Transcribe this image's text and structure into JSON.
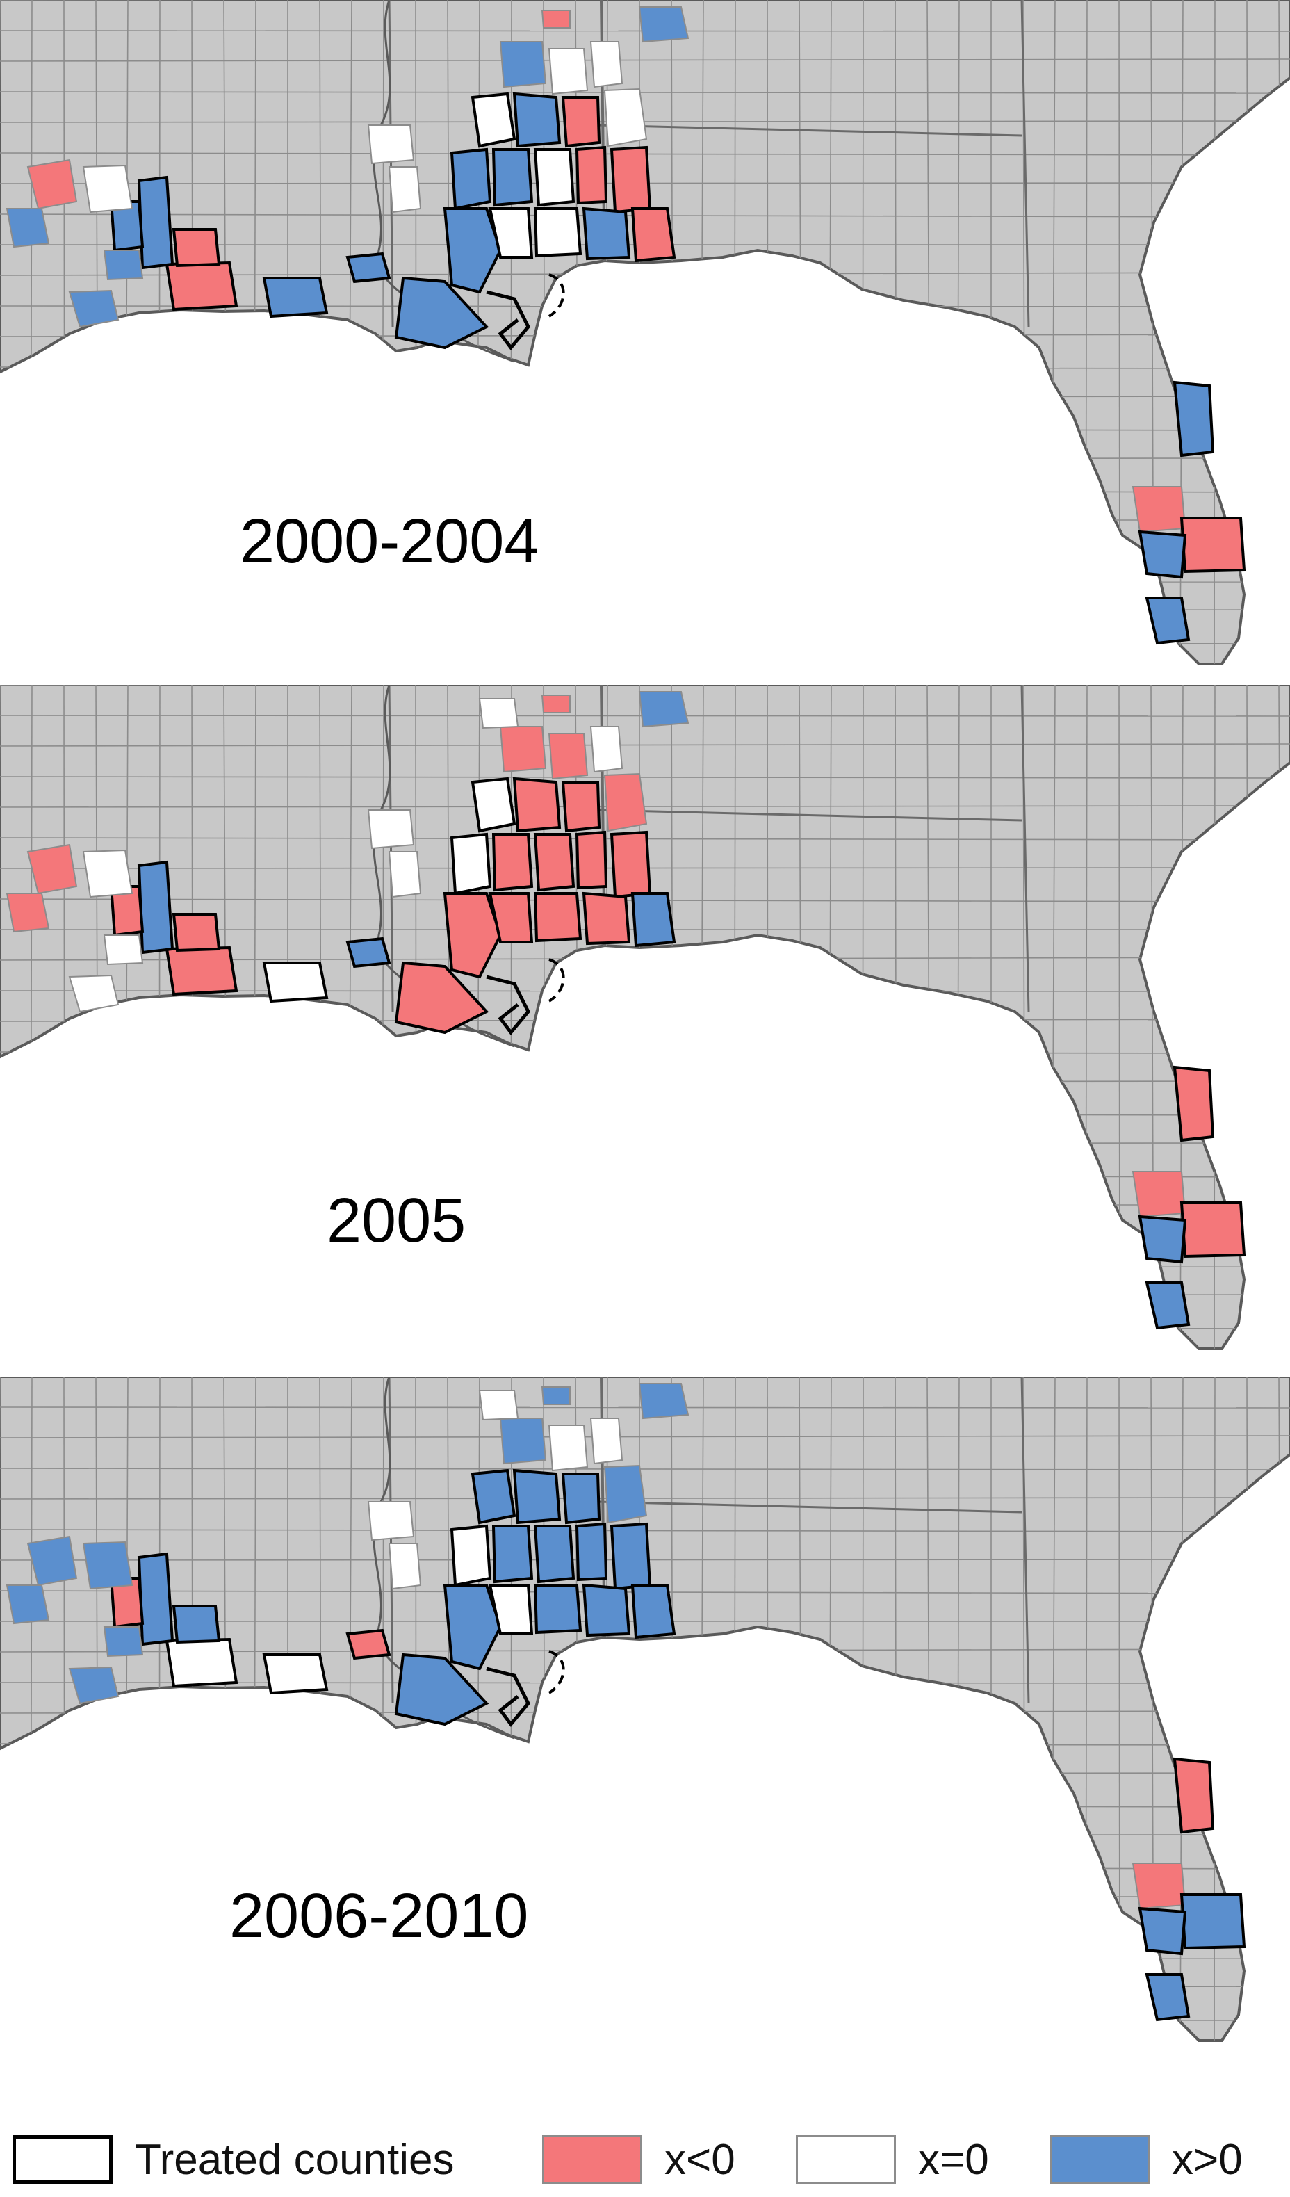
{
  "colors": {
    "land": "#c8c8c8",
    "county_border": "#8c8c8c",
    "state_border": "#6a6a6a",
    "coast": "#5a5a5a",
    "water": "#ffffff",
    "negative": "#f4777a",
    "zero": "#ffffff",
    "positive": "#5b8fce",
    "treated_border": "#000000"
  },
  "panels": [
    {
      "label": "2000-2004"
    },
    {
      "label": "2005"
    },
    {
      "label": "2006-2010"
    }
  ],
  "legend": {
    "treated": "Treated counties",
    "negative": "x<0",
    "zero": "x=0",
    "positive": "x>0"
  }
}
